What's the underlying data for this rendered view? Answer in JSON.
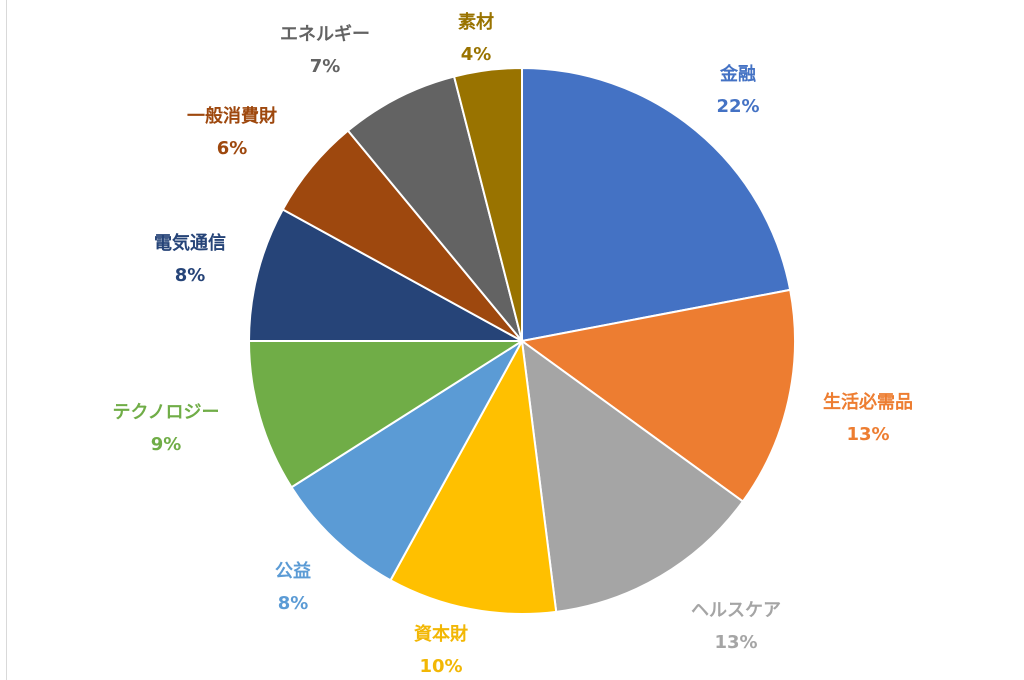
{
  "chart_data": {
    "type": "pie",
    "title": "",
    "slices": [
      {
        "label": "金融",
        "value": 22,
        "pct_label": "22%",
        "color": "#4472C4"
      },
      {
        "label": "生活必需品",
        "value": 13,
        "pct_label": "13%",
        "color": "#ED7D31"
      },
      {
        "label": "ヘルスケア",
        "value": 13,
        "pct_label": "13%",
        "color": "#A5A5A5"
      },
      {
        "label": "資本財",
        "value": 10,
        "pct_label": "10%",
        "color": "#FFC000"
      },
      {
        "label": "公益",
        "value": 8,
        "pct_label": "8%",
        "color": "#5B9BD5"
      },
      {
        "label": "テクノロジー",
        "value": 9,
        "pct_label": "9%",
        "color": "#70AD47"
      },
      {
        "label": "電気通信",
        "value": 8,
        "pct_label": "8%",
        "color": "#264478"
      },
      {
        "label": "一般消費財",
        "value": 6,
        "pct_label": "6%",
        "color": "#9E480E"
      },
      {
        "label": "エネルギー",
        "value": 7,
        "pct_label": "7%",
        "color": "#636363"
      },
      {
        "label": "素材",
        "value": 4,
        "pct_label": "4%",
        "color": "#997300"
      }
    ],
    "start_angle_deg": 0,
    "direction": "clockwise",
    "legend": "none",
    "data_labels": "outside, category name and percentage"
  }
}
